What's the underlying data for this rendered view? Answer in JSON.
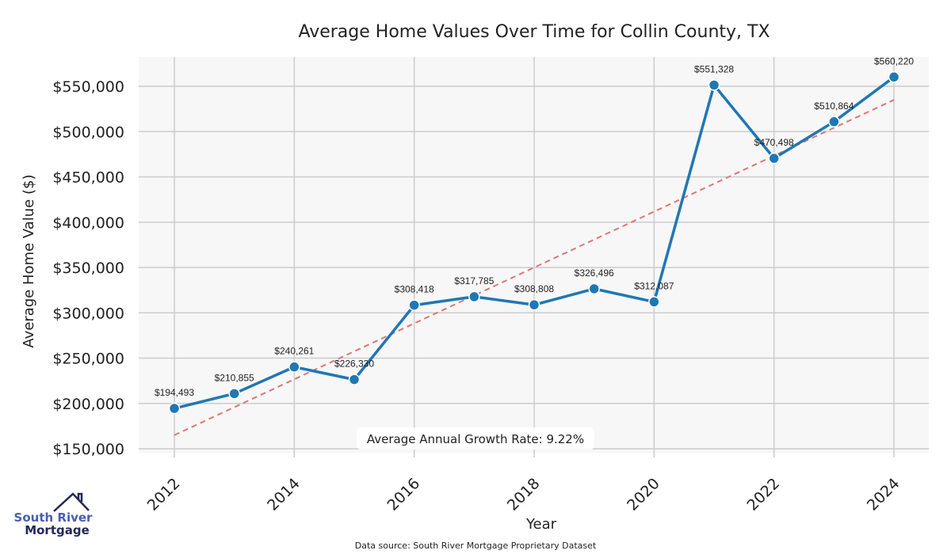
{
  "chart_data": {
    "type": "line",
    "title": "Average Home Values Over Time for Collin County, TX",
    "xlabel": "Year",
    "ylabel": "Average Home Value ($)",
    "x": [
      2012,
      2013,
      2014,
      2015,
      2016,
      2017,
      2018,
      2019,
      2020,
      2021,
      2022,
      2023,
      2024
    ],
    "values": [
      194493,
      210855,
      240261,
      226330,
      308418,
      317785,
      308808,
      326496,
      312087,
      551328,
      470498,
      510864,
      560220
    ],
    "data_labels": [
      "$194,493",
      "$210,855",
      "$240,261",
      "$226,330",
      "$308,418",
      "$317,785",
      "$308,808",
      "$326,496",
      "$312,087",
      "$551,328",
      "$470,498",
      "$510,864",
      "$560,220"
    ],
    "xticks": [
      "2012",
      "2014",
      "2016",
      "2018",
      "2020",
      "2022",
      "2024"
    ],
    "xtick_values": [
      2012,
      2014,
      2016,
      2018,
      2020,
      2022,
      2024
    ],
    "yticks": [
      "$150,000",
      "$200,000",
      "$250,000",
      "$300,000",
      "$350,000",
      "$400,000",
      "$450,000",
      "$500,000",
      "$550,000"
    ],
    "ytick_values": [
      150000,
      200000,
      250000,
      300000,
      350000,
      400000,
      450000,
      500000,
      550000
    ],
    "xlim": [
      2011.4,
      2024.6
    ],
    "ylim": [
      145000,
      588000
    ],
    "trend": {
      "start": [
        2012,
        165000
      ],
      "end": [
        2024,
        535000
      ]
    },
    "grid": true,
    "annotation": "Average Annual Growth Rate: 9.22%",
    "colors": {
      "line": "#1f77b4",
      "trend": "#d9777b",
      "background": "#f7f7f7",
      "grid": "#cccccc"
    }
  },
  "footer": {
    "source": "Data source: South River Mortgage Proprietary Dataset"
  },
  "logo": {
    "line1": "South River",
    "line2": "Mortgage"
  }
}
